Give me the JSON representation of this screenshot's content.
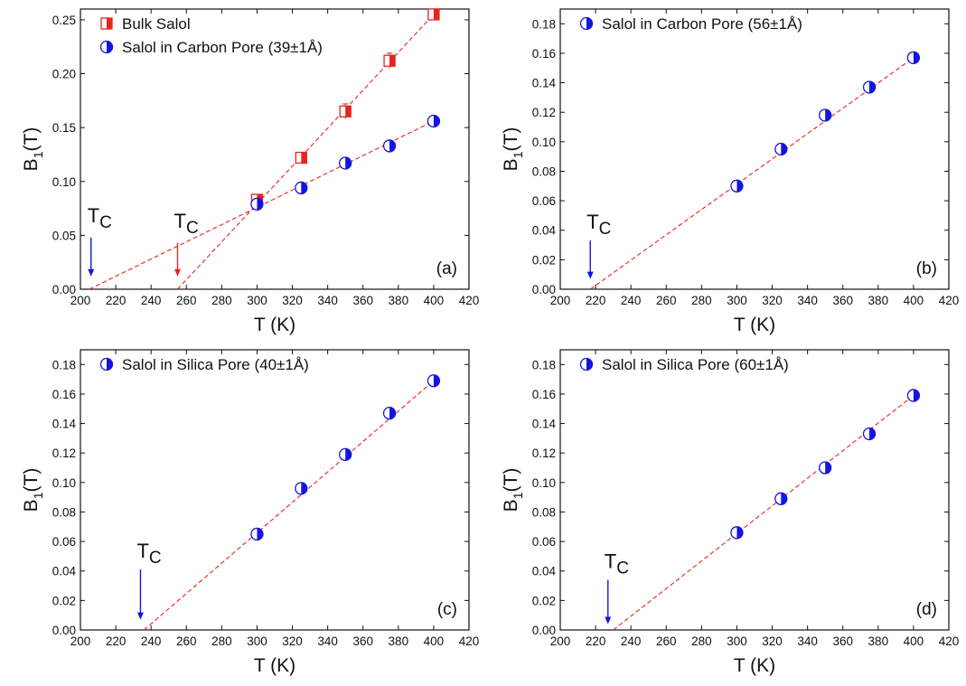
{
  "figure": {
    "colors": {
      "red": "#e8241f",
      "blue": "#1414e0",
      "fit_line": "#e8241f",
      "axis": "#111111"
    }
  },
  "chart_data": [
    {
      "type": "scatter",
      "panel_label": "(a)",
      "xlabel": "T (K)",
      "ylabel_main": "B",
      "ylabel_sub": "1",
      "ylabel_suffix": "(T)",
      "xlim": [
        200,
        420
      ],
      "ylim": [
        0,
        0.26
      ],
      "xticks": [
        200,
        220,
        240,
        260,
        280,
        300,
        320,
        340,
        360,
        380,
        400,
        420
      ],
      "xtick_labels": [
        "200",
        "220",
        "240",
        "260",
        "280",
        "300",
        "320",
        "340",
        "360",
        "380",
        "400",
        "420"
      ],
      "yticks": [
        0,
        0.05,
        0.1,
        0.15,
        0.2,
        0.25
      ],
      "ytick_labels": [
        "0.00",
        "0.05",
        "0.10",
        "0.15",
        "0.20",
        "0.25"
      ],
      "legend_position": "top-left",
      "series": [
        {
          "name": "Bulk Salol",
          "marker": "square-half",
          "color": "#e8241f",
          "x": [
            300,
            325,
            350,
            375,
            400
          ],
          "y": [
            0.083,
            0.122,
            0.165,
            0.212,
            0.255
          ],
          "yerr": [
            0.004,
            0.004,
            0.007,
            0.007,
            0.004
          ],
          "fit": {
            "x": [
              255,
              400
            ],
            "y": [
              0,
              0.255
            ]
          }
        },
        {
          "name": "Salol in Carbon Pore (39±1Å)",
          "marker": "circle-half",
          "color": "#1414e0",
          "x": [
            300,
            325,
            350,
            375,
            400
          ],
          "y": [
            0.079,
            0.094,
            0.117,
            0.133,
            0.156
          ],
          "yerr": [
            0.003,
            0.003,
            0.003,
            0.003,
            0.003
          ],
          "fit": {
            "x": [
              205,
              400
            ],
            "y": [
              0,
              0.156
            ]
          }
        }
      ],
      "annotations": [
        {
          "label": "T",
          "sub": "C",
          "x": 206,
          "color": "#1414e0",
          "text_y": 0.062,
          "arrow_from": 0.048,
          "arrow_to": 0.012
        },
        {
          "label": "T",
          "sub": "C",
          "x": 255,
          "color": "#e8241f",
          "text_y": 0.057,
          "arrow_from": 0.043,
          "arrow_to": 0.012
        }
      ]
    },
    {
      "type": "scatter",
      "panel_label": "(b)",
      "xlabel": "T (K)",
      "ylabel_main": "B",
      "ylabel_sub": "1",
      "ylabel_suffix": "(T)",
      "xlim": [
        200,
        420
      ],
      "ylim": [
        0,
        0.19
      ],
      "xticks": [
        200,
        220,
        240,
        260,
        280,
        300,
        320,
        340,
        360,
        380,
        400,
        420
      ],
      "xtick_labels": [
        "200",
        "220",
        "240",
        "260",
        "280",
        "300",
        "320",
        "340",
        "360",
        "380",
        "400",
        "420"
      ],
      "yticks": [
        0,
        0.02,
        0.04,
        0.06,
        0.08,
        0.1,
        0.12,
        0.14,
        0.16,
        0.18
      ],
      "ytick_labels": [
        "0.00",
        "0.02",
        "0.04",
        "0.06",
        "0.08",
        "0.10",
        "0.12",
        "0.14",
        "0.16",
        "0.18"
      ],
      "legend_position": "top-left",
      "series": [
        {
          "name": "Salol in Carbon Pore (56±1Å)",
          "marker": "circle-half",
          "color": "#1414e0",
          "x": [
            300,
            325,
            350,
            375,
            400
          ],
          "y": [
            0.07,
            0.095,
            0.118,
            0.137,
            0.157
          ],
          "yerr": [
            0.002,
            0.003,
            0.002,
            0.002,
            0.002
          ],
          "fit": {
            "x": [
              217,
              400
            ],
            "y": [
              0,
              0.157
            ]
          }
        }
      ],
      "annotations": [
        {
          "label": "T",
          "sub": "C",
          "x": 217,
          "color": "#1414e0",
          "text_y": 0.041,
          "arrow_from": 0.033,
          "arrow_to": 0.007
        }
      ]
    },
    {
      "type": "scatter",
      "panel_label": "(c)",
      "xlabel": "T (K)",
      "ylabel_main": "B",
      "ylabel_sub": "1",
      "ylabel_suffix": "(T)",
      "xlim": [
        200,
        420
      ],
      "ylim": [
        0,
        0.19
      ],
      "xticks": [
        200,
        220,
        240,
        260,
        280,
        300,
        320,
        340,
        360,
        380,
        400,
        420
      ],
      "xtick_labels": [
        "200",
        "220",
        "240",
        "260",
        "280",
        "300",
        "320",
        "340",
        "360",
        "380",
        "400",
        "420"
      ],
      "yticks": [
        0,
        0.02,
        0.04,
        0.06,
        0.08,
        0.1,
        0.12,
        0.14,
        0.16,
        0.18
      ],
      "ytick_labels": [
        "0.00",
        "0.02",
        "0.04",
        "0.06",
        "0.08",
        "0.10",
        "0.12",
        "0.14",
        "0.16",
        "0.18"
      ],
      "legend_position": "top-left",
      "series": [
        {
          "name": "Salol in Silica Pore (40±1Å)",
          "marker": "circle-half",
          "color": "#1414e0",
          "x": [
            300,
            325,
            350,
            375,
            400
          ],
          "y": [
            0.065,
            0.096,
            0.119,
            0.147,
            0.169
          ],
          "yerr": [
            0.002,
            0.002,
            0.002,
            0.002,
            0.002
          ],
          "fit": {
            "x": [
              236,
              400
            ],
            "y": [
              0,
              0.169
            ]
          }
        }
      ],
      "annotations": [
        {
          "label": "T",
          "sub": "C",
          "x": 234,
          "color": "#1414e0",
          "text_y": 0.049,
          "arrow_from": 0.041,
          "arrow_to": 0.007
        }
      ]
    },
    {
      "type": "scatter",
      "panel_label": "(d)",
      "xlabel": "T (K)",
      "ylabel_main": "B",
      "ylabel_sub": "1",
      "ylabel_suffix": "(T)",
      "xlim": [
        200,
        420
      ],
      "ylim": [
        0,
        0.19
      ],
      "xticks": [
        200,
        220,
        240,
        260,
        280,
        300,
        320,
        340,
        360,
        380,
        400,
        420
      ],
      "xtick_labels": [
        "200",
        "220",
        "240",
        "260",
        "280",
        "300",
        "320",
        "340",
        "360",
        "380",
        "400",
        "420"
      ],
      "yticks": [
        0,
        0.02,
        0.04,
        0.06,
        0.08,
        0.1,
        0.12,
        0.14,
        0.16,
        0.18
      ],
      "ytick_labels": [
        "0.00",
        "0.02",
        "0.04",
        "0.06",
        "0.08",
        "0.10",
        "0.12",
        "0.14",
        "0.16",
        "0.18"
      ],
      "legend_position": "top-left",
      "series": [
        {
          "name": "Salol in Silica Pore (60±1Å)",
          "marker": "circle-half",
          "color": "#1414e0",
          "x": [
            300,
            325,
            350,
            375,
            400
          ],
          "y": [
            0.066,
            0.089,
            0.11,
            0.133,
            0.159
          ],
          "yerr": [
            0.002,
            0.002,
            0.002,
            0.002,
            0.002
          ],
          "fit": {
            "x": [
              230,
              400
            ],
            "y": [
              0,
              0.159
            ]
          }
        }
      ],
      "annotations": [
        {
          "label": "T",
          "sub": "C",
          "x": 227,
          "color": "#1414e0",
          "text_y": 0.042,
          "arrow_from": 0.034,
          "arrow_to": 0.004
        }
      ]
    }
  ]
}
